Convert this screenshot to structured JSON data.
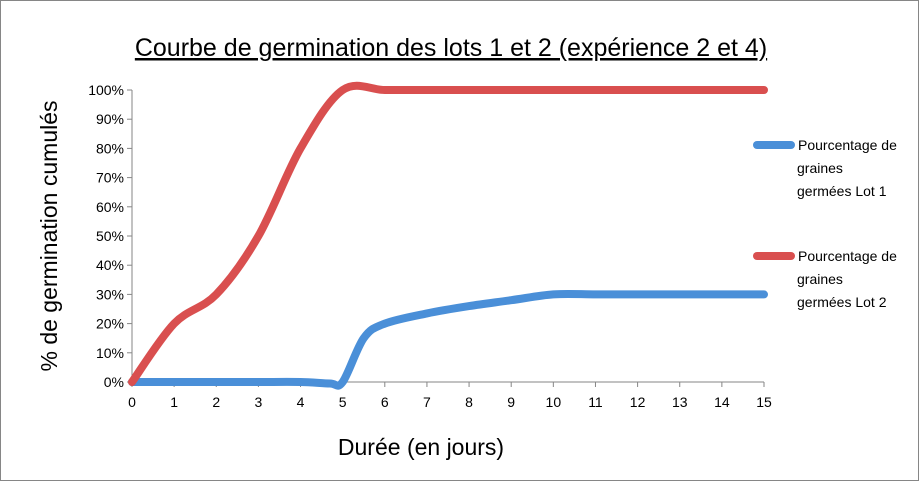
{
  "chart_data": {
    "type": "line",
    "title": "Courbe de germination des lots 1 et 2 (expérience 2 et 4)",
    "xlabel": "Durée (en jours)",
    "ylabel": "% de germination cumulés",
    "xlim": [
      0,
      15
    ],
    "ylim": [
      0,
      100
    ],
    "x_ticks": [
      "0",
      "1",
      "2",
      "3",
      "4",
      "5",
      "6",
      "7",
      "8",
      "9",
      "10",
      "11",
      "12",
      "13",
      "14",
      "15"
    ],
    "y_ticks": [
      "0%",
      "10%",
      "20%",
      "30%",
      "40%",
      "50%",
      "60%",
      "70%",
      "80%",
      "90%",
      "100%"
    ],
    "grid": false,
    "legend_position": "right",
    "series": [
      {
        "name": "Pourcentage de graines germées Lot 1",
        "color": "#4a8fd8",
        "x": [
          0,
          1,
          2,
          3,
          4,
          4.7,
          5,
          5.5,
          6,
          7,
          8,
          9,
          10,
          11,
          12,
          13,
          14,
          15
        ],
        "values": [
          0,
          0,
          0,
          0,
          0,
          -0.5,
          0,
          15,
          20,
          23.5,
          26,
          28,
          30,
          30,
          30,
          30,
          30,
          30
        ]
      },
      {
        "name": "Pourcentage de graines germées Lot 2",
        "color": "#d94f4f",
        "x": [
          0,
          1,
          2,
          3,
          4,
          5,
          6,
          7,
          8,
          9,
          10,
          11,
          12,
          13,
          14,
          15
        ],
        "values": [
          0,
          20,
          30,
          50,
          80,
          100,
          100,
          100,
          100,
          100,
          100,
          100,
          100,
          100,
          100,
          100
        ]
      }
    ],
    "legend_lines": [
      [
        "Pourcentage de",
        "graines",
        "germées Lot 1"
      ],
      [
        "Pourcentage de",
        "graines",
        "germées Lot 2"
      ]
    ]
  }
}
